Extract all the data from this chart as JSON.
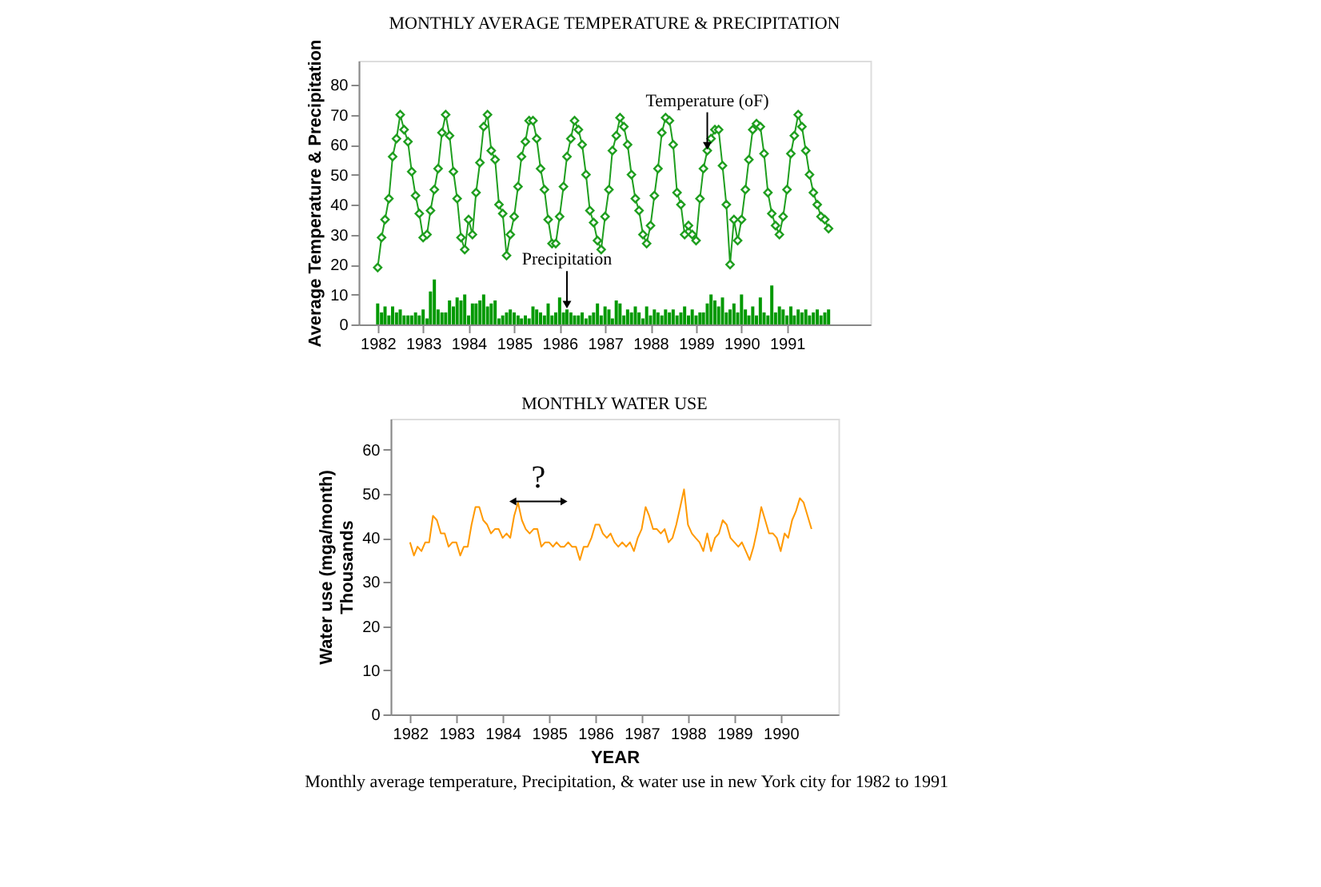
{
  "chart_data": [
    {
      "type": "line",
      "title": "MONTHLY AVERAGE TEMPERATURE & PRECIPITATION",
      "ylabel": "Average Temperature & Precipitation",
      "grid": false,
      "marker": "diamond",
      "xlim": [
        "1981-08",
        "1992-11"
      ],
      "xticks": [
        "1982",
        "1983",
        "1984",
        "1985",
        "1986",
        "1987",
        "1988",
        "1989",
        "1990",
        "1991"
      ],
      "ylim": [
        0,
        88
      ],
      "yticks": [
        0,
        10,
        20,
        30,
        40,
        50,
        60,
        70,
        80
      ],
      "annotations": [
        {
          "text": "Temperature (oF)",
          "x": "1989-04",
          "y": 58
        },
        {
          "text": "Precipitation",
          "x": "1986-03",
          "y": 5
        }
      ],
      "x": [
        "1982-01",
        "1982-02",
        "1982-03",
        "1982-04",
        "1982-05",
        "1982-06",
        "1982-07",
        "1982-08",
        "1982-09",
        "1982-10",
        "1982-11",
        "1982-12",
        "1983-01",
        "1983-02",
        "1983-03",
        "1983-04",
        "1983-05",
        "1983-06",
        "1983-07",
        "1983-08",
        "1983-09",
        "1983-10",
        "1983-11",
        "1983-12",
        "1984-01",
        "1984-02",
        "1984-03",
        "1984-04",
        "1984-05",
        "1984-06",
        "1984-07",
        "1984-08",
        "1984-09",
        "1984-10",
        "1984-11",
        "1984-12",
        "1985-01",
        "1985-02",
        "1985-03",
        "1985-04",
        "1985-05",
        "1985-06",
        "1985-07",
        "1985-08",
        "1985-09",
        "1985-10",
        "1985-11",
        "1985-12",
        "1986-01",
        "1986-02",
        "1986-03",
        "1986-04",
        "1986-05",
        "1986-06",
        "1986-07",
        "1986-08",
        "1986-09",
        "1986-10",
        "1986-11",
        "1986-12",
        "1987-01",
        "1987-02",
        "1987-03",
        "1987-04",
        "1987-05",
        "1987-06",
        "1987-07",
        "1987-08",
        "1987-09",
        "1987-10",
        "1987-11",
        "1987-12",
        "1988-01",
        "1988-02",
        "1988-03",
        "1988-04",
        "1988-05",
        "1988-06",
        "1988-07",
        "1988-08",
        "1988-09",
        "1988-10",
        "1988-11",
        "1988-12",
        "1989-01",
        "1989-02",
        "1989-03",
        "1989-04",
        "1989-05",
        "1989-06",
        "1989-07",
        "1989-08",
        "1989-09",
        "1989-10",
        "1989-11",
        "1989-12",
        "1990-01",
        "1990-02",
        "1990-03",
        "1990-04",
        "1990-05",
        "1990-06",
        "1990-07",
        "1990-08",
        "1990-09",
        "1990-10",
        "1990-11",
        "1990-12",
        "1991-01",
        "1991-02",
        "1991-03",
        "1991-04",
        "1991-05",
        "1991-06",
        "1991-07",
        "1991-08",
        "1991-09",
        "1991-10",
        "1991-11",
        "1991-12"
      ],
      "series": [
        {
          "type": "bar",
          "color": "#009900",
          "values": [
            7,
            4,
            6,
            3,
            6,
            4,
            5,
            3,
            3,
            3,
            4,
            3,
            5,
            2,
            11,
            15,
            5,
            4,
            4,
            8,
            6,
            9,
            8,
            10,
            3,
            7,
            7,
            8,
            10,
            6,
            7,
            8,
            2,
            3,
            4,
            5,
            4,
            3,
            2,
            3,
            2,
            6,
            5,
            4,
            3,
            7,
            3,
            4,
            9,
            4,
            5,
            4,
            3,
            3,
            4,
            2,
            3,
            4,
            7,
            3,
            6,
            5,
            2,
            8,
            7,
            3,
            5,
            4,
            6,
            4,
            2,
            6,
            3,
            5,
            4,
            3,
            5,
            4,
            5,
            3,
            4,
            6,
            3,
            5,
            3,
            4,
            4,
            7,
            10,
            8,
            6,
            9,
            4,
            5,
            7,
            4,
            10,
            5,
            3,
            6,
            3,
            9,
            4,
            3,
            13,
            4,
            6,
            5,
            3,
            6,
            3,
            5,
            4,
            5,
            3,
            4,
            5,
            3,
            4,
            5
          ]
        },
        {
          "color": "#1e9e1e",
          "values": [
            19,
            29,
            35,
            42,
            56,
            62,
            70,
            65,
            61,
            51,
            43,
            37,
            29,
            30,
            38,
            45,
            52,
            64,
            70,
            63,
            51,
            42,
            29,
            25,
            35,
            30,
            44,
            54,
            66,
            70,
            58,
            55,
            40,
            37,
            23,
            30,
            36,
            46,
            56,
            61,
            68,
            68,
            62,
            52,
            45,
            35,
            27,
            27,
            36,
            46,
            56,
            62,
            68,
            65,
            60,
            50,
            38,
            34,
            28,
            25,
            36,
            45,
            58,
            63,
            69,
            66,
            60,
            50,
            42,
            38,
            30,
            27,
            33,
            43,
            52,
            64,
            69,
            68,
            60,
            44,
            40,
            30,
            33,
            30,
            28,
            42,
            52,
            58,
            62,
            65,
            65,
            53,
            40,
            20,
            35,
            28,
            35,
            45,
            55,
            65,
            67,
            66,
            57,
            44,
            37,
            33,
            30,
            36,
            45,
            57,
            63,
            70,
            66,
            58,
            50,
            44,
            40,
            36,
            35,
            32
          ]
        }
      ]
    },
    {
      "type": "line",
      "title": "MONTHLY WATER USE",
      "xlabel": "YEAR",
      "ylabel": "Water use (mga/month)\nThousands",
      "grid": false,
      "xlim": [
        "1981-08",
        "1991-04"
      ],
      "xticks": [
        "1982",
        "1983",
        "1984",
        "1985",
        "1986",
        "1987",
        "1988",
        "1989",
        "1990"
      ],
      "ylim": [
        0,
        67
      ],
      "yticks": [
        0,
        10,
        20,
        30,
        40,
        50,
        60
      ],
      "annotations": [
        "?",
        "Monthly average temperature, Precipitation, & water use in new York city for 1982 to 1991"
      ],
      "x": [
        "1982-01",
        "1982-02",
        "1982-03",
        "1982-04",
        "1982-05",
        "1982-06",
        "1982-07",
        "1982-08",
        "1982-09",
        "1982-10",
        "1982-11",
        "1982-12",
        "1983-01",
        "1983-02",
        "1983-03",
        "1983-04",
        "1983-05",
        "1983-06",
        "1983-07",
        "1983-08",
        "1983-09",
        "1983-10",
        "1983-11",
        "1983-12",
        "1984-01",
        "1984-02",
        "1984-03",
        "1984-04",
        "1984-05",
        "1984-06",
        "1984-07",
        "1984-08",
        "1984-09",
        "1984-10",
        "1984-11",
        "1984-12",
        "1985-01",
        "1985-02",
        "1985-03",
        "1985-04",
        "1985-05",
        "1985-06",
        "1985-07",
        "1985-08",
        "1985-09",
        "1985-10",
        "1985-11",
        "1985-12",
        "1986-01",
        "1986-02",
        "1986-03",
        "1986-04",
        "1986-05",
        "1986-06",
        "1986-07",
        "1986-08",
        "1986-09",
        "1986-10",
        "1986-11",
        "1986-12",
        "1987-01",
        "1987-02",
        "1987-03",
        "1987-04",
        "1987-05",
        "1987-06",
        "1987-07",
        "1987-08",
        "1987-09",
        "1987-10",
        "1987-11",
        "1987-12",
        "1988-01",
        "1988-02",
        "1988-03",
        "1988-04",
        "1988-05",
        "1988-06",
        "1988-07",
        "1988-08",
        "1988-09",
        "1988-10",
        "1988-11",
        "1988-12",
        "1989-01",
        "1989-02",
        "1989-03",
        "1989-04",
        "1989-05",
        "1989-06",
        "1989-07",
        "1989-08",
        "1989-09",
        "1989-10",
        "1989-11",
        "1989-12",
        "1990-01",
        "1990-02",
        "1990-03",
        "1990-04",
        "1990-05",
        "1990-06",
        "1990-07",
        "1990-08",
        "1990-09"
      ],
      "series": [
        {
          "color": "#ff9900",
          "values": [
            39,
            36,
            38,
            37,
            39,
            39,
            45,
            44,
            41,
            41,
            38,
            39,
            39,
            36,
            38,
            38,
            43,
            47,
            47,
            44,
            43,
            41,
            42,
            42,
            40,
            41,
            40,
            45,
            48,
            44,
            42,
            41,
            42,
            42,
            38,
            39,
            39,
            38,
            39,
            38,
            38,
            39,
            38,
            38,
            35,
            38,
            38,
            40,
            43,
            43,
            41,
            40,
            41,
            39,
            38,
            39,
            38,
            39,
            37,
            40,
            42,
            47,
            45,
            42,
            42,
            41,
            42,
            39,
            40,
            43,
            47,
            51,
            43,
            41,
            40,
            39,
            37,
            41,
            37,
            40,
            41,
            44,
            43,
            40,
            39,
            38,
            39,
            37,
            35,
            38,
            42,
            47,
            44,
            41,
            41,
            40,
            37,
            41,
            40,
            44,
            46,
            49,
            48,
            45,
            42
          ]
        }
      ]
    }
  ]
}
